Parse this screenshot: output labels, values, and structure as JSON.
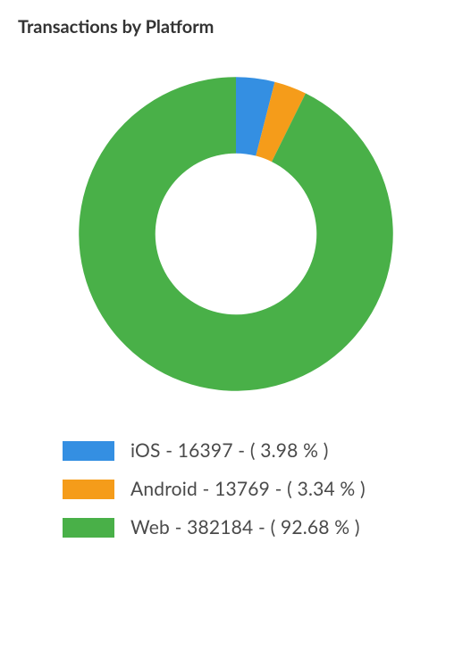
{
  "chart": {
    "type": "donut",
    "title": "Transactions by Platform",
    "title_fontsize": 20,
    "title_color": "#333333",
    "background_color": "#ffffff",
    "inner_radius": 95,
    "outer_radius": 185,
    "start_angle_deg": -90,
    "slice_gap_deg": 0,
    "series": [
      {
        "name": "iOS",
        "value": 16397,
        "percent": 3.98,
        "color": "#348fe2"
      },
      {
        "name": "Android",
        "value": 13769,
        "percent": 3.34,
        "color": "#f59c1a"
      },
      {
        "name": "Web",
        "value": 382184,
        "percent": 92.68,
        "color": "#49b048"
      }
    ],
    "legend": {
      "position": "bottom",
      "swatch_width": 58,
      "swatch_height": 22,
      "label_fontsize": 21,
      "label_color": "#4a4a4a",
      "item_gap": 18
    }
  }
}
